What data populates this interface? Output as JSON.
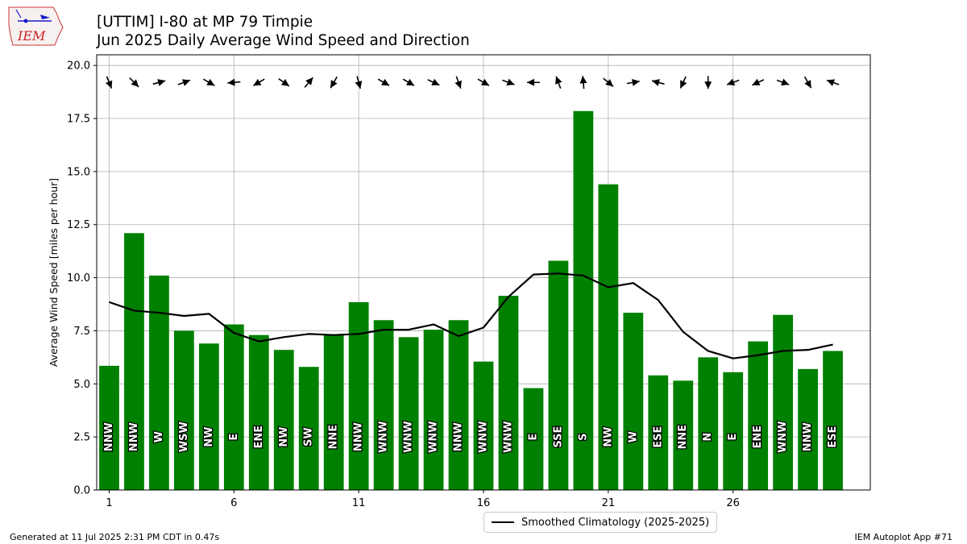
{
  "header": {
    "title_line1": "[UTTIM] I-80 at MP 79 Timpie",
    "title_line2": "Jun 2025 Daily Average Wind Speed and Direction",
    "logo_text": "IEM"
  },
  "footer": {
    "generated": "Generated at 11 Jul 2025 2:31 PM CDT in 0.47s",
    "app": "IEM Autoplot App #71"
  },
  "legend": {
    "label": "Smoothed Climatology (2025-2025)"
  },
  "colors": {
    "bar": "#008000",
    "line": "#000000",
    "grid": "#b0b0b0",
    "arrow": "#000000",
    "logo": "#cc2222"
  },
  "chart_data": {
    "type": "bar",
    "title": "[UTTIM] I-80 at MP 79 Timpie",
    "subtitle": "Jun 2025 Daily Average Wind Speed and Direction",
    "xlabel": "",
    "ylabel": "Average Wind Speed [miles per hour]",
    "xlim": [
      0.5,
      31.5
    ],
    "ylim": [
      0,
      20.5
    ],
    "xticks": [
      1,
      6,
      11,
      16,
      21,
      26
    ],
    "yticks": [
      0.0,
      2.5,
      5.0,
      7.5,
      10.0,
      12.5,
      15.0,
      17.5,
      20.0
    ],
    "grid": true,
    "legend_position": "bottom-center",
    "days": [
      1,
      2,
      3,
      4,
      5,
      6,
      7,
      8,
      9,
      10,
      11,
      12,
      13,
      14,
      15,
      16,
      17,
      18,
      19,
      20,
      21,
      22,
      23,
      24,
      25,
      26,
      27,
      28,
      29,
      30
    ],
    "values": [
      5.85,
      12.1,
      10.1,
      7.5,
      6.9,
      7.8,
      7.3,
      6.6,
      5.8,
      7.3,
      8.85,
      8.0,
      7.2,
      7.55,
      8.0,
      6.05,
      9.15,
      4.8,
      10.8,
      17.85,
      14.4,
      8.35,
      5.4,
      5.15,
      6.25,
      5.55,
      7.0,
      8.25,
      5.7,
      6.55
    ],
    "directions": [
      "NNW",
      "NNW",
      "W",
      "WSW",
      "NW",
      "E",
      "ENE",
      "NW",
      "SW",
      "NNE",
      "NNW",
      "WNW",
      "WNW",
      "WNW",
      "NNW",
      "WNW",
      "WNW",
      "E",
      "SSE",
      "S",
      "NW",
      "W",
      "ESE",
      "NNE",
      "N",
      "E",
      "ENE",
      "WNW",
      "NNW",
      "ESE"
    ],
    "arrow_direction_deg": [
      338,
      315,
      255,
      250,
      300,
      85,
      60,
      305,
      220,
      30,
      345,
      300,
      300,
      295,
      340,
      300,
      290,
      90,
      160,
      175,
      310,
      260,
      105,
      25,
      0,
      70,
      65,
      290,
      330,
      110
    ],
    "series": [
      {
        "name": "Smoothed Climatology (2025-2025)",
        "type": "line",
        "values": [
          8.85,
          8.45,
          8.35,
          8.2,
          8.3,
          7.4,
          7.0,
          7.2,
          7.35,
          7.3,
          7.35,
          7.55,
          7.55,
          7.8,
          7.25,
          7.65,
          9.1,
          10.15,
          10.2,
          10.1,
          9.55,
          9.75,
          8.95,
          7.45,
          6.55,
          6.2,
          6.35,
          6.55,
          6.6,
          6.85
        ]
      }
    ]
  }
}
